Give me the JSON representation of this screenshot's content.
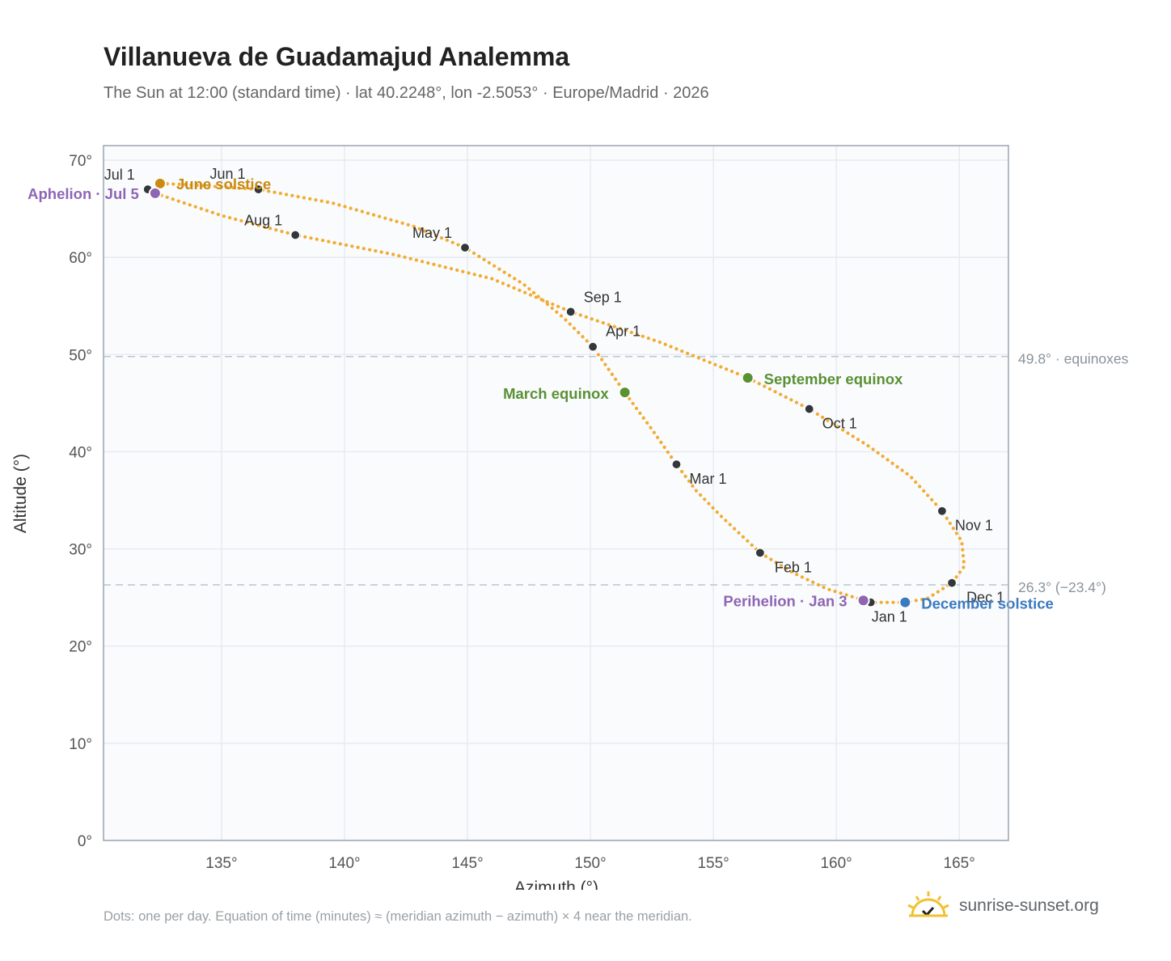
{
  "header": {
    "title": "Villanueva de Guadamajud Analemma",
    "subtitle": "The Sun at 12:00 (standard time) · lat 40.2248°, lon -2.5053° · Europe/Madrid · 2026"
  },
  "footer": {
    "note": "Dots: one per day. Equation of time (minutes) ≈ (meridian azimuth − azimuth) × 4 near the meridian.",
    "brand": "sunrise-sunset.org"
  },
  "colors": {
    "curve": "#f2a626",
    "month_dot": "#33363b",
    "solstice_june": "#c98a12",
    "solstice_december": "#3a7abf",
    "equinox": "#5a9133",
    "apsis": "#8e65b3",
    "reference_line": "#b8c6d2",
    "plot_bg": "#f9fbfd",
    "grid": "#e3e8ee",
    "frame": "#9aa5b1"
  },
  "chart_data": {
    "type": "scatter",
    "xlabel": "Azimuth (°)",
    "ylabel": "Altitude (°)",
    "xlim": [
      130.2,
      167.0
    ],
    "ylim": [
      0,
      71.5
    ],
    "x_ticks": [
      135,
      140,
      145,
      150,
      155,
      160,
      165
    ],
    "x_tick_labels": [
      "135°",
      "140°",
      "145°",
      "150°",
      "155°",
      "160°",
      "165°"
    ],
    "y_ticks": [
      0,
      10,
      20,
      30,
      40,
      50,
      60,
      70
    ],
    "y_tick_labels": [
      "0°",
      "10°",
      "20°",
      "30°",
      "40°",
      "50°",
      "60°",
      "70°"
    ],
    "grid": true,
    "reference_lines": [
      {
        "y": 49.8,
        "label": "49.8° · equinoxes"
      },
      {
        "y": 26.3,
        "label": "26.3° (−23.4°)"
      }
    ],
    "month_markers": [
      {
        "label": "Jan 1",
        "x": 161.4,
        "y": 24.5
      },
      {
        "label": "Feb 1",
        "x": 156.9,
        "y": 29.6
      },
      {
        "label": "Mar 1",
        "x": 153.5,
        "y": 38.7
      },
      {
        "label": "Apr 1",
        "x": 150.1,
        "y": 50.8
      },
      {
        "label": "May 1",
        "x": 144.9,
        "y": 61.0
      },
      {
        "label": "Jun 1",
        "x": 136.5,
        "y": 67.0
      },
      {
        "label": "Jul 1",
        "x": 132.0,
        "y": 67.0
      },
      {
        "label": "Aug 1",
        "x": 138.0,
        "y": 62.3
      },
      {
        "label": "Sep 1",
        "x": 149.2,
        "y": 54.4
      },
      {
        "label": "Oct 1",
        "x": 158.9,
        "y": 44.4
      },
      {
        "label": "Nov 1",
        "x": 164.3,
        "y": 33.9
      },
      {
        "label": "Dec 1",
        "x": 164.7,
        "y": 26.5
      }
    ],
    "events": [
      {
        "label": "June solstice",
        "x": 132.5,
        "y": 67.6,
        "kind": "solstice_june"
      },
      {
        "label": "December solstice",
        "x": 162.8,
        "y": 24.5,
        "kind": "solstice_december"
      },
      {
        "label": "March equinox",
        "x": 151.4,
        "y": 46.1,
        "kind": "equinox"
      },
      {
        "label": "September equinox",
        "x": 156.4,
        "y": 47.6,
        "kind": "equinox"
      },
      {
        "label": "Aphelion · Jul 5",
        "x": 132.3,
        "y": 66.6,
        "kind": "apsis"
      },
      {
        "label": "Perihelion · Jan 3",
        "x": 161.1,
        "y": 24.7,
        "kind": "apsis"
      }
    ],
    "curve_path": [
      [
        162.8,
        24.5
      ],
      [
        161.4,
        24.5
      ],
      [
        159.6,
        25.9
      ],
      [
        158.2,
        27.6
      ],
      [
        156.9,
        29.6
      ],
      [
        155.3,
        33.4
      ],
      [
        154.3,
        36.0
      ],
      [
        153.5,
        38.7
      ],
      [
        152.5,
        42.3
      ],
      [
        151.4,
        46.1
      ],
      [
        150.1,
        50.8
      ],
      [
        148.9,
        53.8
      ],
      [
        147.3,
        57.2
      ],
      [
        144.9,
        61.0
      ],
      [
        142.8,
        63.2
      ],
      [
        139.5,
        65.6
      ],
      [
        136.5,
        67.0
      ],
      [
        133.5,
        67.5
      ],
      [
        132.5,
        67.6
      ],
      [
        132.0,
        67.0
      ],
      [
        132.3,
        66.6
      ],
      [
        135.0,
        64.3
      ],
      [
        138.0,
        62.3
      ],
      [
        142.0,
        60.3
      ],
      [
        146.0,
        57.8
      ],
      [
        149.2,
        54.4
      ],
      [
        152.8,
        51.3
      ],
      [
        156.4,
        47.6
      ],
      [
        158.9,
        44.4
      ],
      [
        161.3,
        40.6
      ],
      [
        163.0,
        37.5
      ],
      [
        164.3,
        33.9
      ],
      [
        165.1,
        30.8
      ],
      [
        165.2,
        28.2
      ],
      [
        164.7,
        26.5
      ],
      [
        163.7,
        24.9
      ],
      [
        162.8,
        24.5
      ]
    ]
  }
}
